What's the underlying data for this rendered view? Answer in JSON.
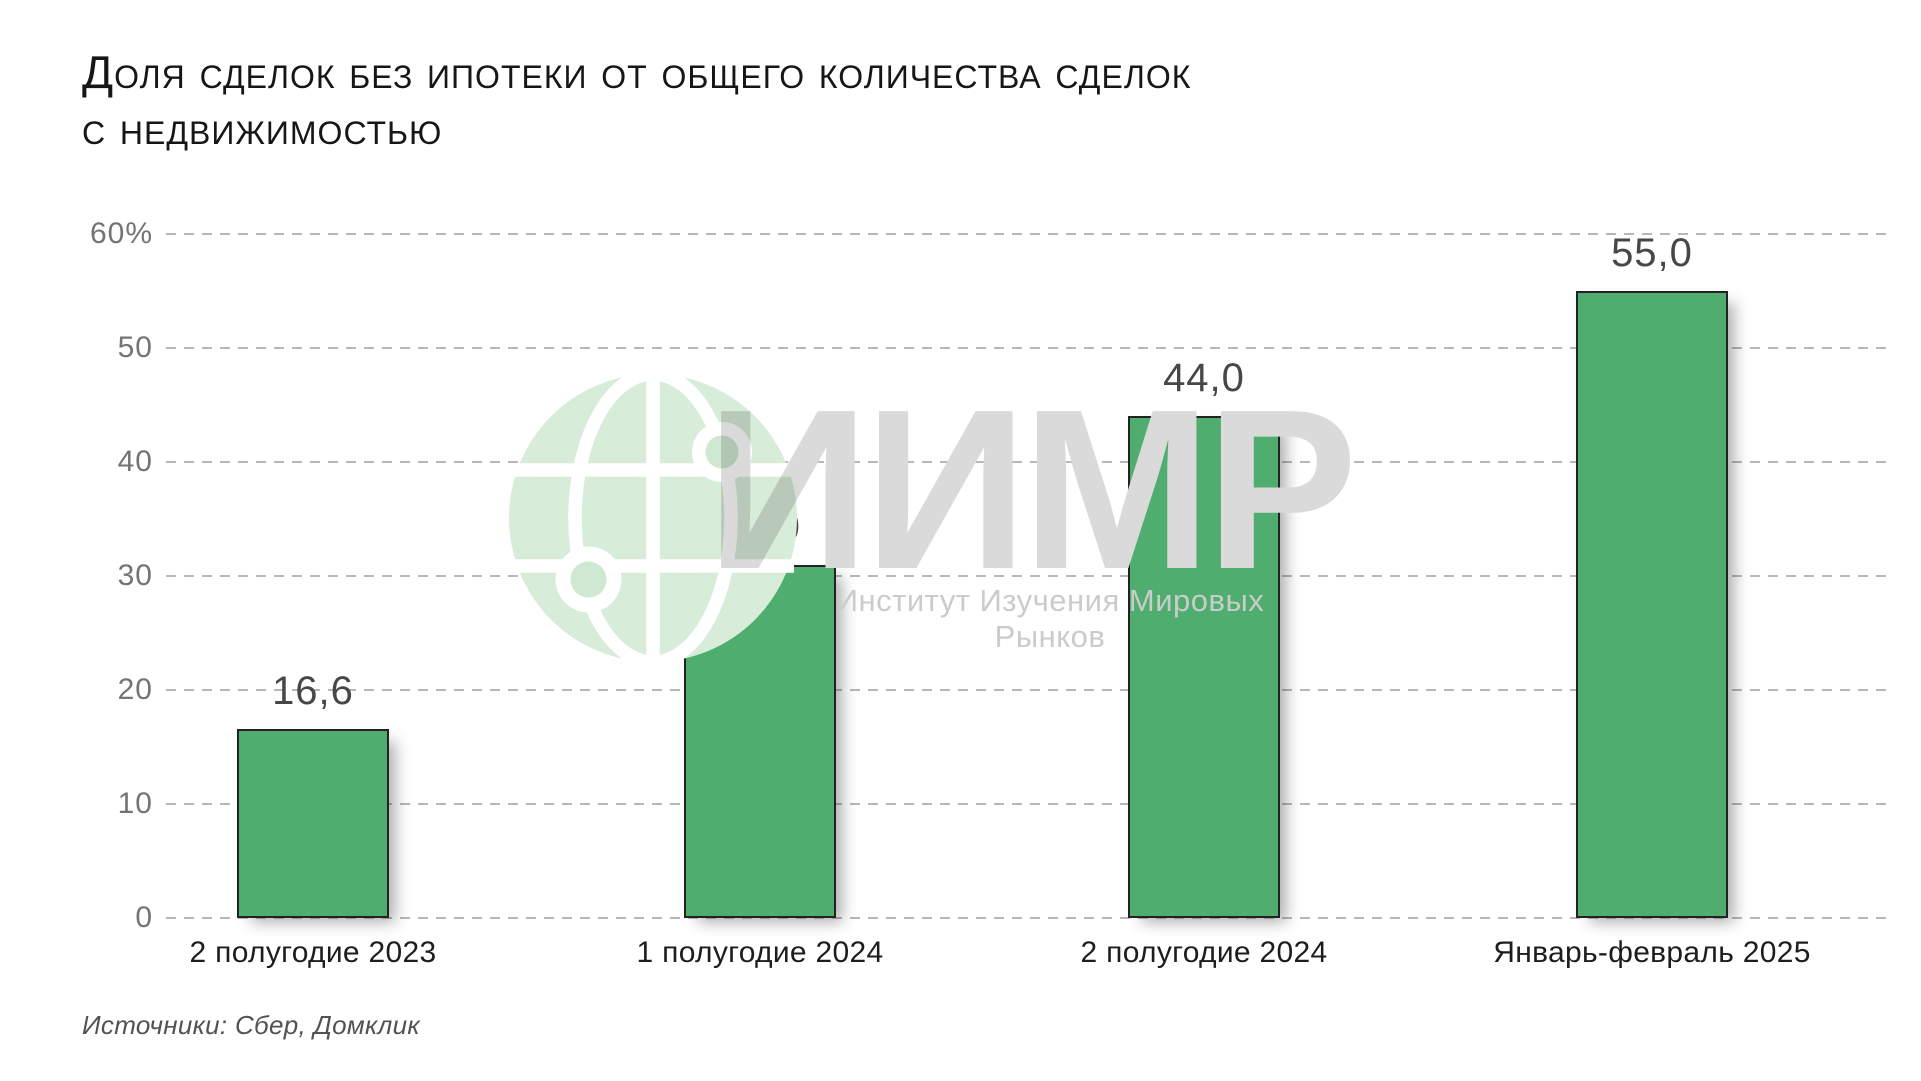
{
  "title_lines": [
    "Доля сделок без ипотеки от общего количества сделок",
    "с недвижимостью"
  ],
  "source": "Источники: Сбер, Домклик",
  "watermark": {
    "abbr": "ИИМР",
    "subtitle": "Институт Изучения Мировых Рынков",
    "globe_icon": "globe-network-icon"
  },
  "colors": {
    "bar": "#4FAE6F",
    "bar_border": "#222222",
    "gridline": "#b7b7b7",
    "tick_text": "#747474",
    "value_text": "#474747",
    "category_text": "#1d1d1d",
    "title_text": "#161616",
    "source_text": "#525252",
    "watermark_gray": "#dadada",
    "watermark_green": "#d7ecd9"
  },
  "chart_data": {
    "type": "bar",
    "title": "Доля сделок без ипотеки от общего количества сделок с недвижимостью",
    "categories": [
      "2 полугодие 2023",
      "1 полугодие 2024",
      "2 полугодие 2024",
      "Январь-февраль 2025"
    ],
    "values": [
      16.6,
      31.0,
      44.0,
      55.0
    ],
    "value_labels": [
      "16,6",
      "31,0",
      "44,0",
      "55,0"
    ],
    "xlabel": "",
    "ylabel": "%",
    "ylim": [
      0,
      60
    ],
    "ytick_values": [
      60,
      50,
      40,
      30,
      20,
      10,
      0
    ],
    "ytick_labels": [
      "60%",
      "50",
      "40",
      "30",
      "20",
      "10",
      "0"
    ],
    "grid": "horizontal-dashed",
    "legend": "none",
    "bar_color": "#4FAE6F"
  }
}
